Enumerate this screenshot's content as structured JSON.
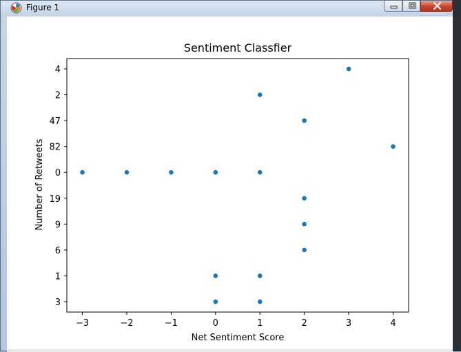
{
  "window": {
    "title": "Figure 1"
  },
  "colors": {
    "marker": "#1f77b4",
    "axes": "#000000",
    "background": "#ffffff"
  },
  "icons": [
    "matplotlib-icon",
    "minimize-icon",
    "maximize-icon",
    "close-icon"
  ],
  "chart_data": {
    "type": "scatter",
    "title": "Sentiment Classfier",
    "xlabel": "Net Sentiment Score",
    "ylabel": "Number of Retweets",
    "xlim": [
      -3.35,
      4.35
    ],
    "x_ticks": [
      -3,
      -2,
      -1,
      0,
      1,
      2,
      3,
      4
    ],
    "x_tick_labels": [
      "−3",
      "−2",
      "−1",
      "0",
      "1",
      "2",
      "3",
      "4"
    ],
    "y_categories": [
      "3",
      "1",
      "6",
      "9",
      "19",
      "0",
      "82",
      "47",
      "2",
      "4"
    ],
    "y_axis_kind": "categorical",
    "grid": false,
    "points": [
      {
        "x": 1,
        "y": "3"
      },
      {
        "x": 0,
        "y": "3"
      },
      {
        "x": 1,
        "y": "1"
      },
      {
        "x": 0,
        "y": "1"
      },
      {
        "x": 2,
        "y": "6"
      },
      {
        "x": 2,
        "y": "9"
      },
      {
        "x": 2,
        "y": "19"
      },
      {
        "x": -3,
        "y": "0"
      },
      {
        "x": -2,
        "y": "0"
      },
      {
        "x": -1,
        "y": "0"
      },
      {
        "x": 0,
        "y": "0"
      },
      {
        "x": 1,
        "y": "0"
      },
      {
        "x": 4,
        "y": "82"
      },
      {
        "x": 2,
        "y": "47"
      },
      {
        "x": 1,
        "y": "2"
      },
      {
        "x": 3,
        "y": "4"
      }
    ]
  }
}
